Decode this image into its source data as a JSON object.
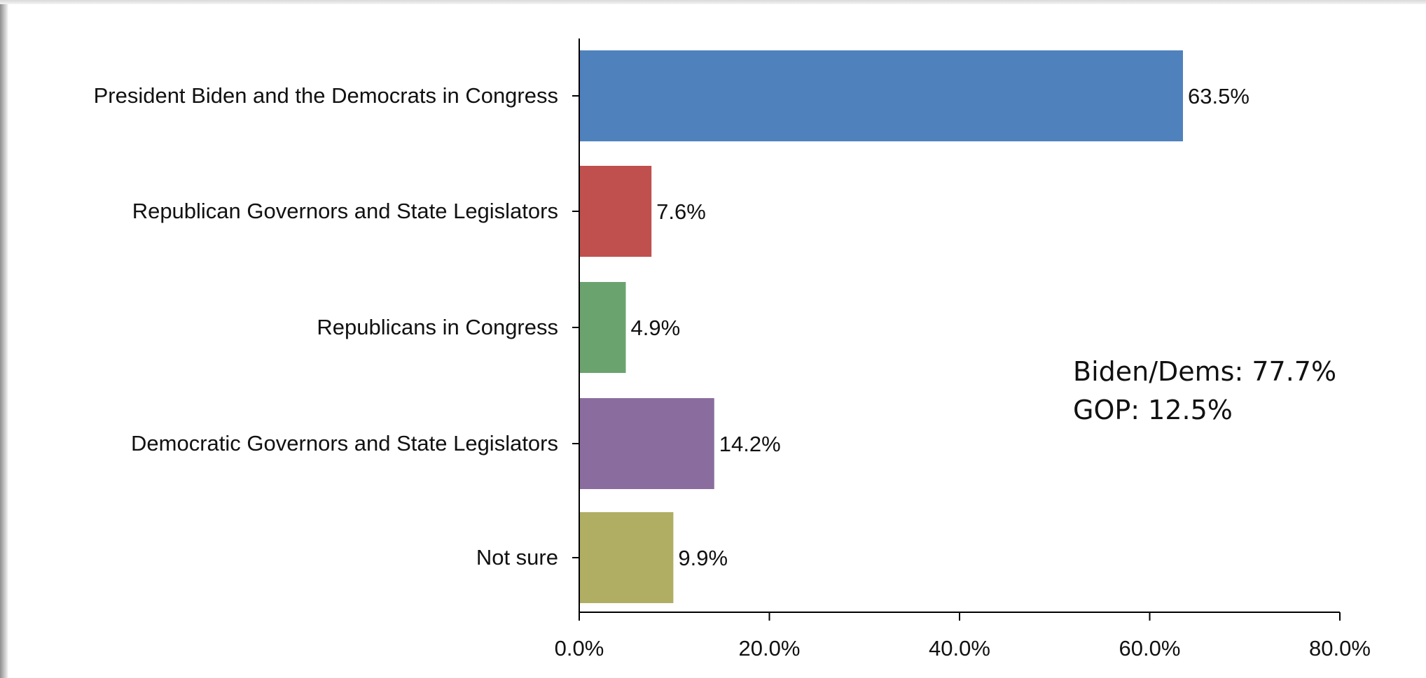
{
  "chart_data": {
    "type": "bar",
    "orientation": "horizontal",
    "categories": [
      "President Biden and the Democrats in Congress",
      "Republican Governors and State Legislators",
      "Republicans in Congress",
      "Democratic Governors and State Legislators",
      "Not sure"
    ],
    "values": [
      63.5,
      7.6,
      4.9,
      14.2,
      9.9
    ],
    "value_labels": [
      "63.5%",
      "7.6%",
      "4.9%",
      "14.2%",
      "9.9%"
    ],
    "colors": [
      "#4f81bd",
      "#c0504d",
      "#6ba36f",
      "#8a6d9e",
      "#afae63"
    ],
    "xlim": [
      0,
      80
    ],
    "xticks": [
      0,
      20,
      40,
      60,
      80
    ],
    "xtick_labels": [
      "0.0%",
      "20.0%",
      "40.0%",
      "60.0%",
      "80.0%"
    ],
    "grid": false,
    "title": "",
    "xlabel": "",
    "ylabel": "",
    "annotations": [
      "Biden/Dems: 77.7%",
      "GOP: 12.5%"
    ]
  }
}
